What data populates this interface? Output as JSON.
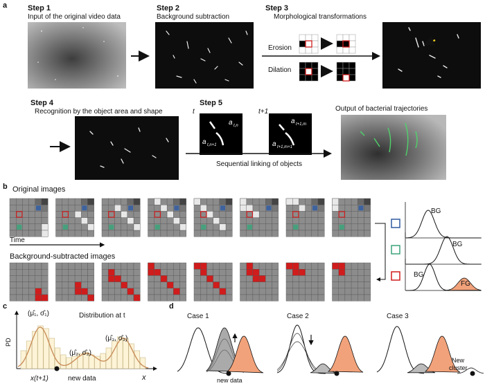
{
  "panel_a": {
    "label": "a",
    "step1": {
      "title": "Step 1",
      "caption": "Input of the original video data"
    },
    "step2": {
      "title": "Step 2",
      "caption": "Background subtraction"
    },
    "step3": {
      "title": "Step 3",
      "caption": "Morphological transformations",
      "erosion": "Erosion",
      "dilation": "Dilation"
    },
    "step4": {
      "title": "Step 4",
      "caption": "Recognition by the object area and shape"
    },
    "step5": {
      "title": "Step 5",
      "time_t": "t",
      "time_t1": "t+1",
      "link_caption": "Sequential linking of objects",
      "label_a1": "a",
      "sub_a1": "t,n",
      "label_a2": "a",
      "sub_a2": "t,n+1",
      "label_a3": "a",
      "sub_a3": "t+1,m",
      "label_a4": "a",
      "sub_a4": "t+1,m+1"
    },
    "output_caption": "Output of bacterial trajectories"
  },
  "panel_b": {
    "label": "b",
    "original_title": "Original images",
    "time_label": "Time",
    "bgsub_title": "Background-subtracted images",
    "dist1_label": "BG",
    "dist2_label": "BG",
    "dist3_bg_label": "BG",
    "dist3_fg_label": "FG",
    "colors": {
      "blue": "#2f5aa0",
      "green": "#3aa37a",
      "red": "#d01c1c",
      "orange": "#f2a27a"
    }
  },
  "panel_c": {
    "label": "c",
    "ylabel": "PD",
    "title": "Distribution at t",
    "param1": "(μ̂₁, σ̂₁)",
    "param2": "(μ̂₂, σ̂₂)",
    "param3": "(μ̂₃, σ̂₃)",
    "xdata": "x(t+1)",
    "new_data": "new data",
    "xlabel": "x"
  },
  "panel_d": {
    "label": "d",
    "case1": "Case 1",
    "case2": "Case 2",
    "case3": "Case 3",
    "new_data": "new data",
    "new_cluster": "New\ncluster"
  }
}
